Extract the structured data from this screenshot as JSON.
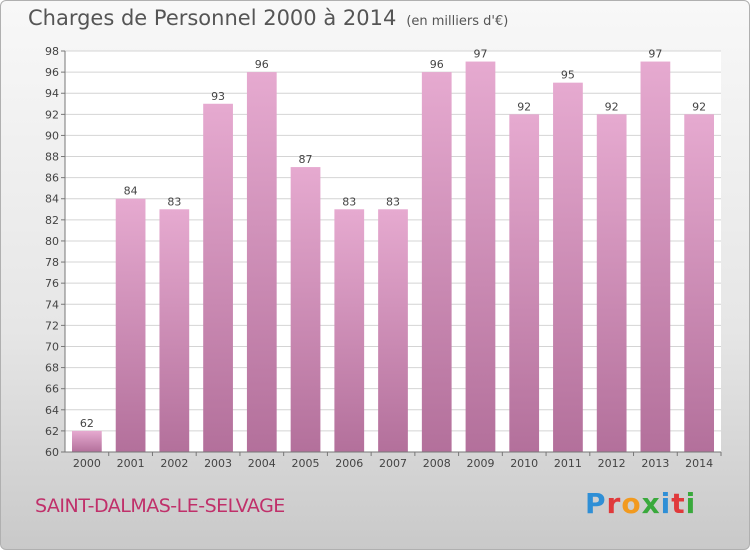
{
  "header": {
    "title": "Charges de Personnel 2000 à 2014",
    "unit": "(en milliers d'€)"
  },
  "footer": {
    "commune": "SAINT-DALMAS-LE-SELVAGE",
    "logo_letters": [
      "P",
      "r",
      "o",
      "x",
      "i",
      "t",
      "i"
    ],
    "logo_colors": [
      "#2f8fd6",
      "#e0393b",
      "#f29a1f",
      "#39a93c",
      "#2f8fd6",
      "#e0393b",
      "#39a93c"
    ]
  },
  "chart_data": {
    "type": "bar",
    "title": "Charges de Personnel 2000 à 2014",
    "subtitle": "(en milliers d'€)",
    "xlabel": "",
    "ylabel": "",
    "categories": [
      "2000",
      "2001",
      "2002",
      "2003",
      "2004",
      "2005",
      "2006",
      "2007",
      "2008",
      "2009",
      "2010",
      "2011",
      "2012",
      "2013",
      "2014"
    ],
    "values": [
      62,
      84,
      83,
      93,
      96,
      87,
      83,
      83,
      96,
      97,
      92,
      95,
      92,
      97,
      92
    ],
    "ylim": [
      60,
      98
    ],
    "yticks": [
      60,
      62,
      64,
      66,
      68,
      70,
      72,
      74,
      76,
      78,
      80,
      82,
      84,
      86,
      88,
      90,
      92,
      94,
      96,
      98
    ],
    "grid": true,
    "bar_color_top": "#e6aad0",
    "bar_color_bottom": "#b3709b"
  }
}
